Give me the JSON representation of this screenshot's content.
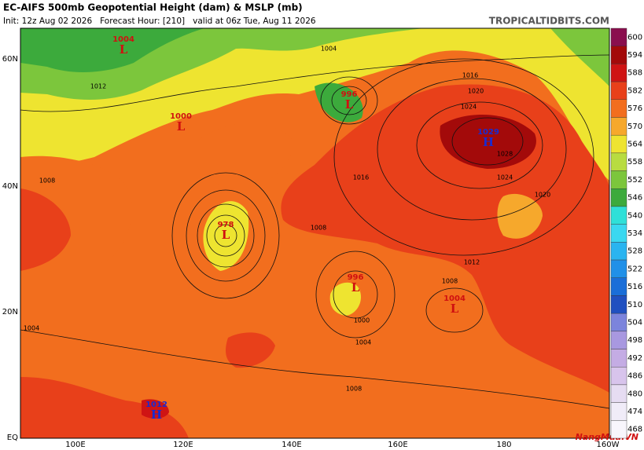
{
  "header": {
    "title": "EC-AIFS 500mb Geopotential Height (dam) & MSLP (mb)",
    "subtitle": "Init: 12z Aug 02 2026   Forecast Hour: [210]   valid at 06z Tue, Aug 11 2026",
    "site": "TROPICALTIDBITS.COM"
  },
  "latitude_labels": [
    "60N",
    "40N",
    "20N",
    "EQ"
  ],
  "longitude_labels": [
    "100E",
    "120E",
    "140E",
    "160E",
    "180",
    "160W"
  ],
  "colorbar": [
    {
      "label": "600",
      "color": "#8a0f4e"
    },
    {
      "label": "594",
      "color": "#a30a0a"
    },
    {
      "label": "588",
      "color": "#cf1414"
    },
    {
      "label": "582",
      "color": "#e8401a"
    },
    {
      "label": "576",
      "color": "#f26e1e"
    },
    {
      "label": "570",
      "color": "#f6a82c"
    },
    {
      "label": "564",
      "color": "#eee430"
    },
    {
      "label": "558",
      "color": "#b8dc40"
    },
    {
      "label": "552",
      "color": "#7cc63c"
    },
    {
      "label": "546",
      "color": "#3caa3c"
    },
    {
      "label": "540",
      "color": "#2fe0d8"
    },
    {
      "label": "534",
      "color": "#3ad8f0"
    },
    {
      "label": "528",
      "color": "#2ab4f0"
    },
    {
      "label": "522",
      "color": "#2090e8"
    },
    {
      "label": "516",
      "color": "#1a6ed8"
    },
    {
      "label": "510",
      "color": "#2050c0"
    },
    {
      "label": "504",
      "color": "#7c84dc"
    },
    {
      "label": "498",
      "color": "#a898e0"
    },
    {
      "label": "492",
      "color": "#c4ace4"
    },
    {
      "label": "486",
      "color": "#d8c4ec"
    },
    {
      "label": "480",
      "color": "#e6dcf2"
    },
    {
      "label": "474",
      "color": "#f0ecf8"
    },
    {
      "label": "468",
      "color": "#f8f6fc"
    }
  ],
  "pressure_centers": [
    {
      "type": "L",
      "value": "1004"
    },
    {
      "type": "L",
      "value": "1000"
    },
    {
      "type": "L",
      "value": "996"
    },
    {
      "type": "H",
      "value": "1029"
    },
    {
      "type": "L",
      "value": "978"
    },
    {
      "type": "L",
      "value": "996"
    },
    {
      "type": "L",
      "value": "1004"
    },
    {
      "type": "H",
      "value": "1012"
    }
  ],
  "isobar_labels": [
    "1012",
    "1004",
    "1016",
    "1020",
    "1024",
    "1028",
    "1024",
    "1020",
    "1016",
    "1012",
    "1008",
    "1004",
    "1000",
    "1008",
    "1008",
    "1004",
    "1008"
  ],
  "watermark": "NangMua.VN"
}
